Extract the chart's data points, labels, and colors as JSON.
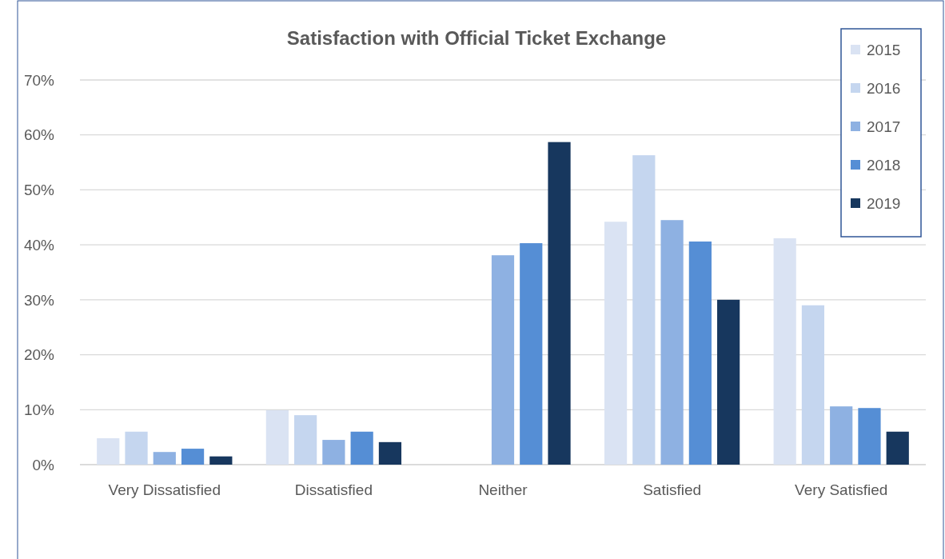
{
  "chart_data": {
    "type": "bar",
    "title": "Satisfaction with Official Ticket Exchange",
    "categories": [
      "Very Dissatisfied",
      "Dissatisfied",
      "Neither",
      "Satisfied",
      "Very Satisfied"
    ],
    "series": [
      {
        "name": "2015",
        "color": "#dae3f3",
        "values": [
          4.8,
          9.9,
          0,
          44.2,
          41.2
        ]
      },
      {
        "name": "2016",
        "color": "#c5d6ef",
        "values": [
          6.0,
          9.0,
          0,
          56.3,
          29.0
        ]
      },
      {
        "name": "2017",
        "color": "#8eb1e2",
        "values": [
          2.3,
          4.5,
          38.1,
          44.5,
          10.6
        ]
      },
      {
        "name": "2018",
        "color": "#558ed5",
        "values": [
          2.9,
          6.0,
          40.3,
          40.6,
          10.3
        ]
      },
      {
        "name": "2019",
        "color": "#17375e",
        "values": [
          1.5,
          4.1,
          58.7,
          30.0,
          6.0
        ]
      }
    ],
    "ylim": [
      0,
      70
    ],
    "yticks": [
      {
        "value": 0,
        "label": "0%"
      },
      {
        "value": 10,
        "label": "10%"
      },
      {
        "value": 20,
        "label": "20%"
      },
      {
        "value": 30,
        "label": "30%"
      },
      {
        "value": 40,
        "label": "40%"
      },
      {
        "value": 50,
        "label": "50%"
      },
      {
        "value": 60,
        "label": "60%"
      },
      {
        "value": 70,
        "label": "70%"
      }
    ],
    "grid": "y",
    "legend": "top right"
  }
}
